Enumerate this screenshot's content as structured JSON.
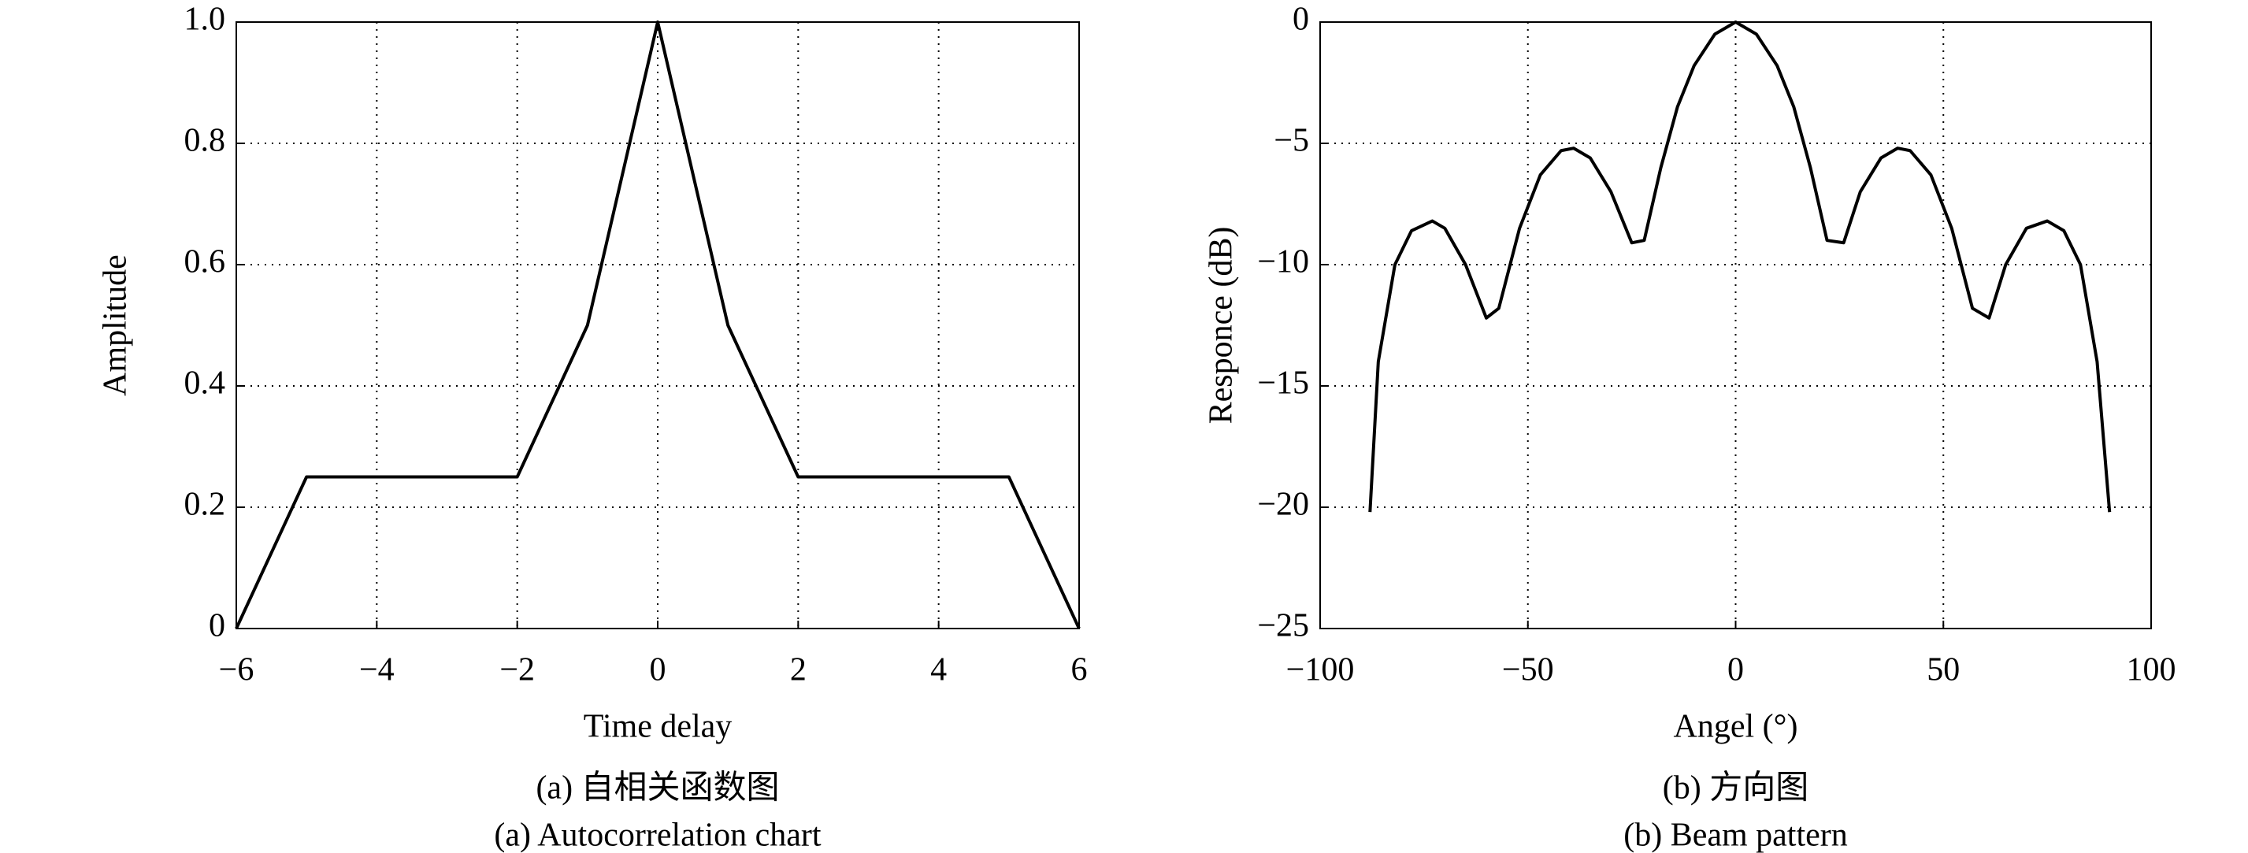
{
  "chart_data": [
    {
      "type": "line",
      "xlabel": "Time delay",
      "ylabel": "Amplitude",
      "caption": [
        "(a) 自相关函数图",
        "(a) Autocorrelation chart"
      ],
      "x": [
        -6,
        -5,
        -2,
        -1,
        0,
        1,
        2,
        5,
        6
      ],
      "values": [
        0,
        0.25,
        0.25,
        0.5,
        1,
        0.5,
        0.25,
        0.25,
        0
      ],
      "color": "#000000",
      "xlim": [
        -6,
        6
      ],
      "xticks": [
        {
          "value": -6,
          "label": "−6"
        },
        {
          "value": -4,
          "label": "−4"
        },
        {
          "value": -2,
          "label": "−2"
        },
        0,
        2,
        4,
        6
      ],
      "ylim": [
        0,
        1
      ],
      "yticks": [
        0,
        0.2,
        0.4,
        0.6,
        0.8,
        {
          "value": 1,
          "label": "1.0"
        }
      ],
      "grid": true
    },
    {
      "type": "line",
      "xlabel": "Angel (°)",
      "ylabel": "Responce (dB)",
      "caption": [
        "(b) 方向图",
        "(b) Beam pattern"
      ],
      "x": [
        -88,
        -86,
        -82,
        -78,
        -73,
        -70,
        -65,
        -60,
        -57,
        -52,
        -47,
        -42,
        -39,
        -35,
        -30,
        -25,
        -22,
        -18,
        -14,
        -10,
        -5,
        0,
        5,
        10,
        14,
        18,
        22,
        26,
        30,
        35,
        39,
        42,
        47,
        52,
        57,
        61,
        65,
        70,
        75,
        79,
        83,
        87,
        90
      ],
      "values": [
        -20.2,
        -14,
        -10,
        -8.6,
        -8.2,
        -8.5,
        -10,
        -12.2,
        -11.8,
        -8.5,
        -6.3,
        -5.3,
        -5.2,
        -5.6,
        -7,
        -9.1,
        -9,
        -6,
        -3.5,
        -1.8,
        -0.5,
        0,
        -0.5,
        -1.8,
        -3.5,
        -6,
        -9,
        -9.1,
        -7,
        -5.6,
        -5.2,
        -5.3,
        -6.3,
        -8.5,
        -11.8,
        -12.2,
        -10,
        -8.5,
        -8.2,
        -8.6,
        -10,
        -14,
        -20.2
      ],
      "color": "#000000",
      "xlim": [
        -100,
        100
      ],
      "xticks": [
        {
          "value": -100,
          "label": "−100"
        },
        {
          "value": -50,
          "label": "−50"
        },
        0,
        50,
        100
      ],
      "ylim": [
        -25,
        0
      ],
      "yticks": [
        {
          "value": -25,
          "label": "−25"
        },
        {
          "value": -20,
          "label": "−20"
        },
        {
          "value": -15,
          "label": "−15"
        },
        {
          "value": -10,
          "label": "−10"
        },
        {
          "value": -5,
          "label": "−5"
        },
        0
      ],
      "grid": true
    }
  ]
}
